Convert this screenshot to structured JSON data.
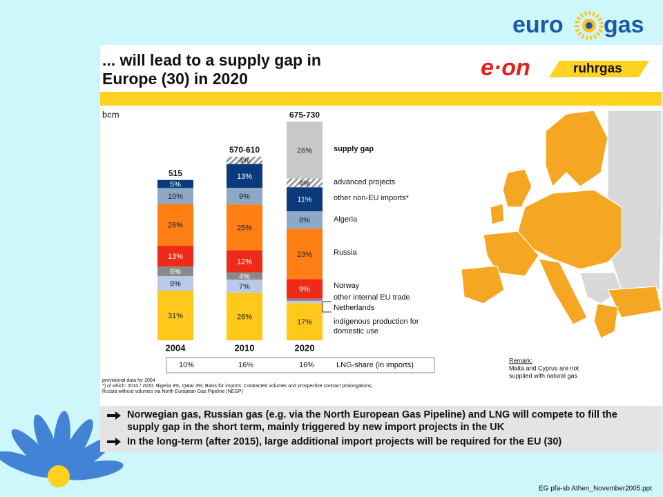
{
  "logo": {
    "left": "euro",
    "right": "gas"
  },
  "slide": {
    "title_lines": [
      "... will lead to a supply gap in",
      "Europe (30) in 2020"
    ],
    "brand_1": "e·on",
    "brand_2": "ruhrgas"
  },
  "chart_data": {
    "type": "stacked_bar",
    "unit_label": "bcm",
    "categories": [
      "2004",
      "2010",
      "2020"
    ],
    "totals": [
      {
        "range": [
          515,
          515
        ],
        "label": "515"
      },
      {
        "range": [
          570,
          610
        ],
        "label": "570-610"
      },
      {
        "range": [
          675,
          730
        ],
        "label": "675-730"
      }
    ],
    "series": [
      {
        "name": "supply gap",
        "color": "#c8c8c8",
        "values": [
          null,
          null,
          26
        ],
        "value_labels": [
          null,
          null,
          "26%"
        ]
      },
      {
        "name": "advanced projects",
        "color": "#9a9a9a",
        "pattern": "hatch",
        "values": [
          null,
          4,
          4
        ],
        "value_labels": [
          null,
          "4%",
          "4%"
        ]
      },
      {
        "name": "other non-EU imports*",
        "color": "#0b3a7c",
        "values": [
          5,
          13,
          11
        ],
        "value_labels": [
          "5%",
          "13%",
          "11%"
        ]
      },
      {
        "name": "Algeria",
        "color": "#8ea8c8",
        "values": [
          10,
          9,
          8
        ],
        "value_labels": [
          "10%",
          "9%",
          "8%"
        ]
      },
      {
        "name": "Russia",
        "color": "#ff7f14",
        "values": [
          26,
          25,
          23
        ],
        "value_labels": [
          "26%",
          "25%",
          "23%"
        ]
      },
      {
        "name": "Norway",
        "color": "#ee2a18",
        "values": [
          13,
          12,
          9
        ],
        "value_labels": [
          "13%",
          "12%",
          "9%"
        ]
      },
      {
        "name": "other internal EU trade",
        "color": "#8a8a8a",
        "values": [
          6,
          4,
          1
        ],
        "value_labels": [
          "6%",
          "4%",
          null
        ]
      },
      {
        "name": "Netherlands",
        "color": "#b9c9eb",
        "values": [
          9,
          7,
          1
        ],
        "value_labels": [
          "9%",
          "7%",
          null
        ]
      },
      {
        "name": "indigenous production for domestic use",
        "color": "#ffc81a",
        "values": [
          31,
          26,
          17
        ],
        "value_labels": [
          "31%",
          "26%",
          "17%"
        ]
      }
    ]
  },
  "lng_share": {
    "label": "LNG-share (in imports)",
    "values": [
      10,
      16,
      16
    ],
    "value_labels": [
      "10%",
      "16%",
      "16%"
    ]
  },
  "remark": {
    "title": "Remark:",
    "lines": [
      "Malta and Cyprus are not",
      "supplied with natural gas"
    ]
  },
  "footnotes": [
    "provisional data for 2004",
    "*) of which: 2010 / 2020: Nigeria 3%, Qatar 3%; Basis for imports: Contracted volumes and prospective contract prolongations;",
    "Russia without volumes via North European Gas Pipeline (NEGP)"
  ],
  "bullets": [
    [
      "Norwegian gas, Russian gas (e.g. via the North European Gas Pipeline) and LNG will compete to fill the",
      "supply gap in the short term, mainly triggered by new import projects in the UK"
    ],
    [
      "In the long-term (after 2015), large additional import projects will be required for the EU (30)"
    ]
  ],
  "footer": "EG pfa-sb Athen_November2005.ppt"
}
